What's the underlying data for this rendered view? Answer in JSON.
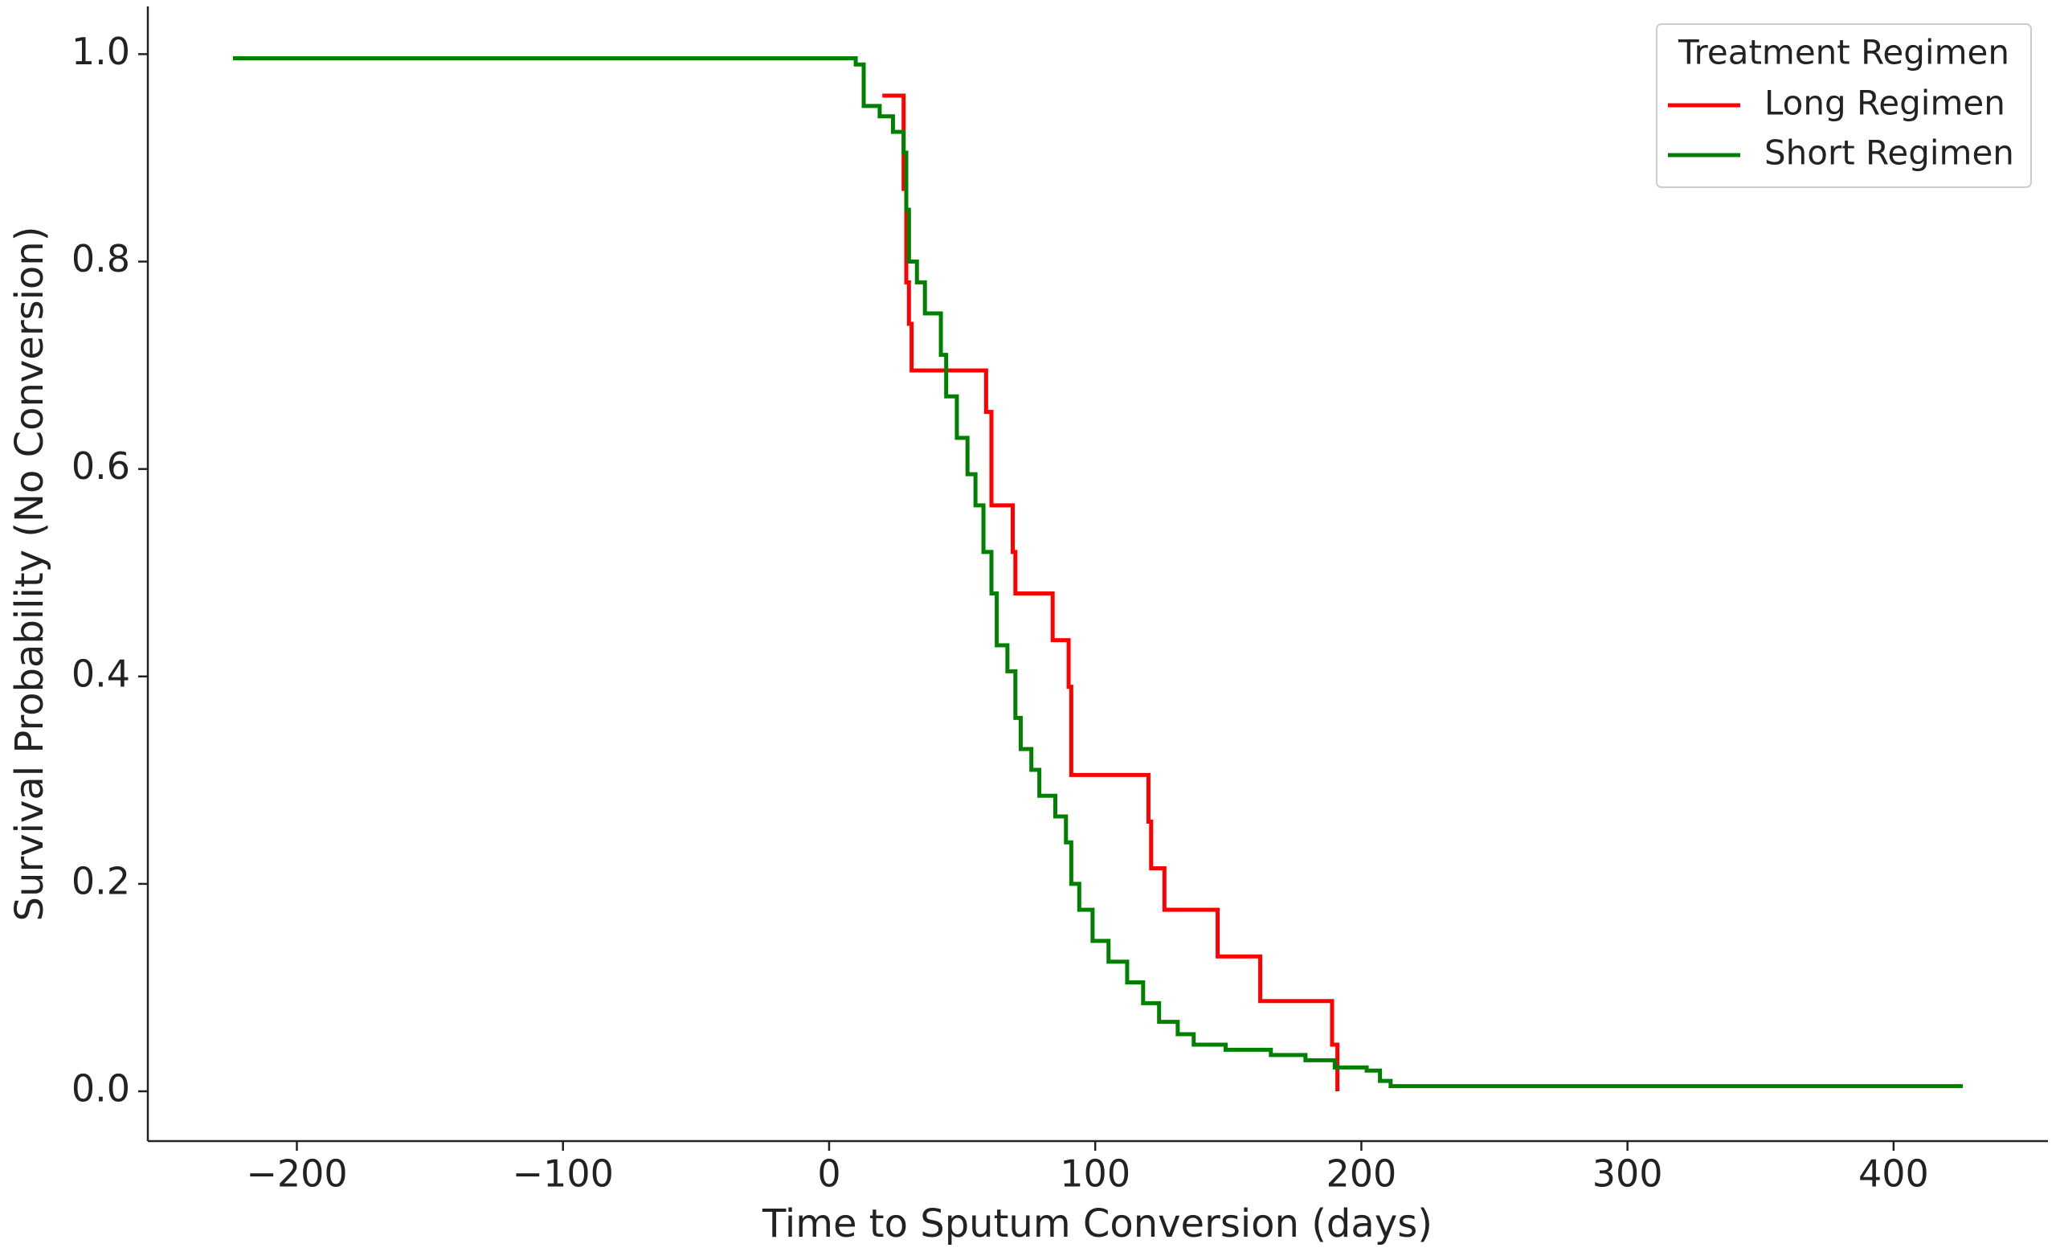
{
  "chart_data": {
    "type": "step",
    "x_label": "Time to Sputum Conversion (days)",
    "y_label": "Survival Probability (No Conversion)",
    "xlim": [
      -256,
      458
    ],
    "ylim": [
      -0.048,
      1.046
    ],
    "xticks": [
      {
        "value": -200,
        "label": "−200"
      },
      {
        "value": -100,
        "label": "−100"
      },
      0,
      100,
      200,
      300,
      400
    ],
    "yticks": [
      {
        "value": 0,
        "label": "0.0"
      },
      0.2,
      0.4,
      0.6,
      0.8,
      {
        "value": 1,
        "label": "1.0"
      }
    ],
    "grid": false,
    "legend_title": "Treatment Regimen",
    "legend_position": "upper right",
    "series": [
      {
        "name": "Long Regimen",
        "color": "#ff0000",
        "x": [
          20,
          28,
          29,
          30,
          31,
          59,
          61,
          69,
          70,
          84,
          90,
          91,
          120,
          121,
          126,
          146,
          162,
          189,
          191
        ],
        "values": [
          0.96,
          0.87,
          0.78,
          0.74,
          0.695,
          0.655,
          0.565,
          0.52,
          0.48,
          0.435,
          0.39,
          0.305,
          0.26,
          0.215,
          0.175,
          0.13,
          0.087,
          0.045,
          0.0
        ]
      },
      {
        "name": "Short Regimen",
        "color": "#008000",
        "x": [
          -224,
          10,
          13,
          19,
          24,
          28,
          29,
          30,
          33,
          36,
          42,
          44,
          48,
          52,
          55,
          58,
          61,
          63,
          67,
          70,
          72,
          76,
          79,
          85,
          89,
          91,
          94,
          99,
          105,
          112,
          118,
          124,
          131,
          137,
          149,
          166,
          179,
          190,
          202,
          207,
          211,
          426
        ],
        "values": [
          0.996,
          0.99,
          0.95,
          0.94,
          0.925,
          0.905,
          0.85,
          0.8,
          0.78,
          0.75,
          0.71,
          0.67,
          0.63,
          0.595,
          0.565,
          0.52,
          0.48,
          0.43,
          0.405,
          0.36,
          0.33,
          0.31,
          0.285,
          0.265,
          0.24,
          0.2,
          0.175,
          0.145,
          0.125,
          0.105,
          0.085,
          0.067,
          0.055,
          0.045,
          0.04,
          0.035,
          0.03,
          0.023,
          0.02,
          0.01,
          0.005,
          0.005
        ]
      }
    ]
  }
}
